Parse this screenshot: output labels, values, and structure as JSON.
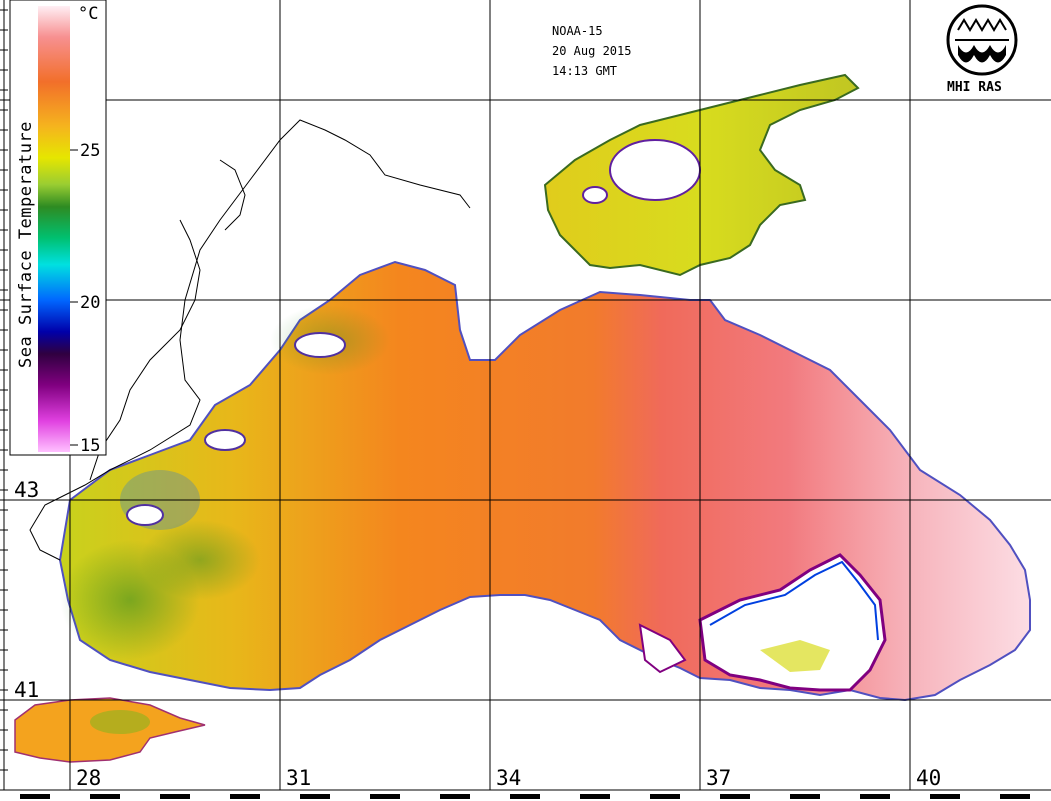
{
  "header": {
    "satellite": "NOAA-15",
    "date": "20 Aug 2015",
    "time": "14:13 GMT"
  },
  "logo": {
    "text": "MHI RAS",
    "icon": "mhi-ras-emblem-icon"
  },
  "colorbar": {
    "title": "Sea Surface Temperature",
    "unit": "°C",
    "ticks": [
      "25",
      "20",
      "15"
    ],
    "colors": [
      "#ffe6f0",
      "#f77a7a",
      "#f26f2a",
      "#f5a623",
      "#e6e600",
      "#9acd32",
      "#2e8b22",
      "#00c070",
      "#00e0e0",
      "#0066ff",
      "#0000aa",
      "#3a0050",
      "#800080",
      "#e040e0",
      "#ffb0ff"
    ]
  },
  "grid": {
    "lat_labels": [
      "43",
      "41"
    ],
    "lon_labels": [
      "28",
      "31",
      "34",
      "37",
      "40"
    ]
  },
  "colors": {
    "warm": "#f55d5d",
    "orange": "#f4821f",
    "yellow": "#d8dc1e",
    "green": "#2e8b22",
    "pale": "#fde7ec"
  }
}
